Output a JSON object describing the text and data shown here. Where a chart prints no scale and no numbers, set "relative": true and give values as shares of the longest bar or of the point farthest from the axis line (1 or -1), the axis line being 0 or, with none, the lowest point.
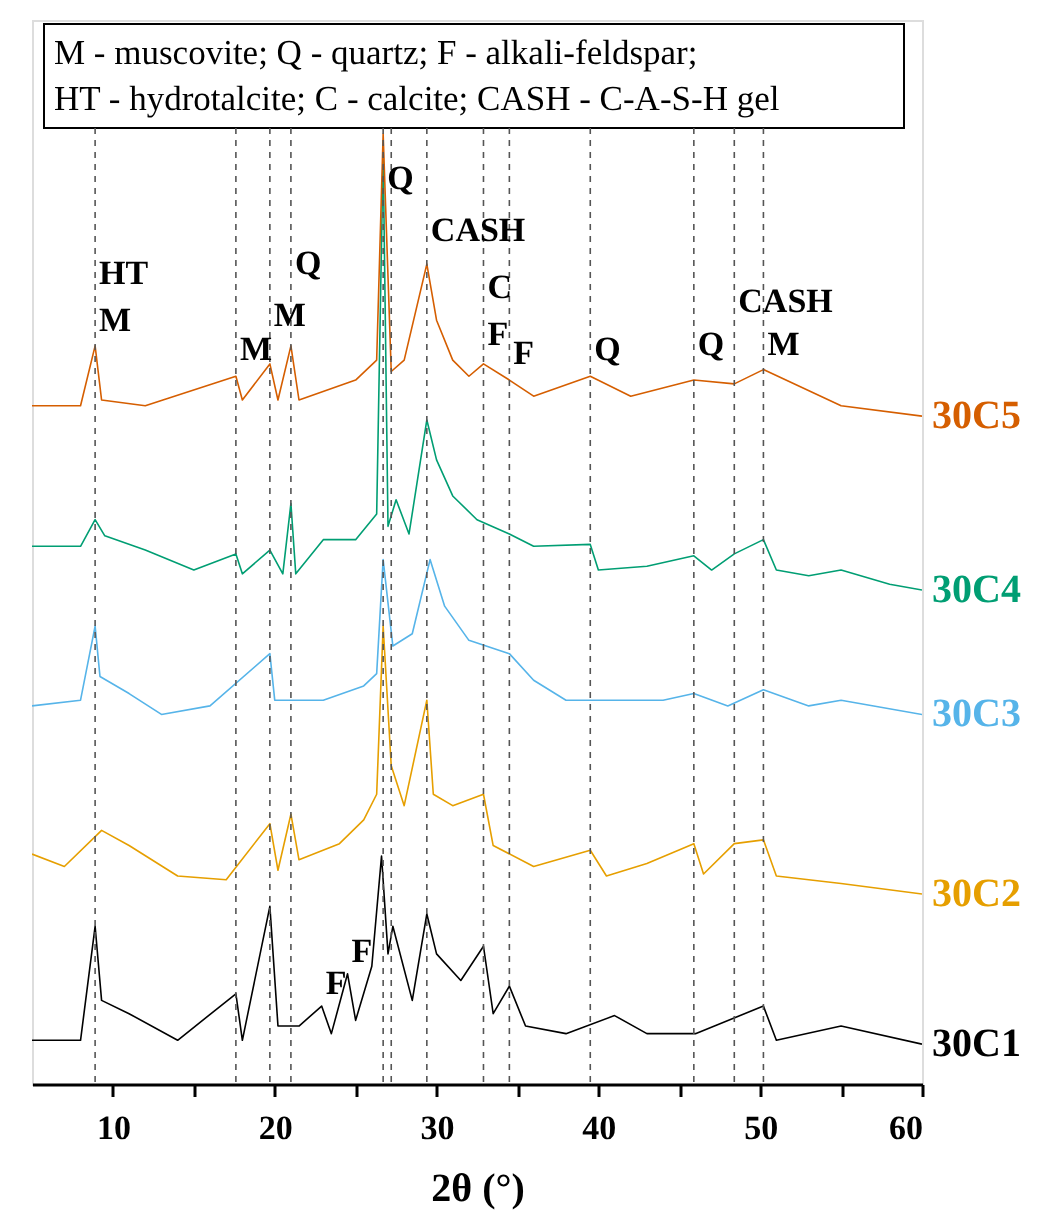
{
  "chart_data": {
    "type": "line",
    "relative": true,
    "xlabel": "2θ (°)",
    "xlim": [
      5,
      60
    ],
    "xticks": [
      10,
      {
        "value": 15,
        "label": null
      },
      20,
      {
        "value": 25,
        "label": null
      },
      30,
      {
        "value": 35,
        "label": null
      },
      40,
      {
        "value": 45,
        "label": null
      },
      50,
      {
        "value": 55,
        "label": null
      },
      60
    ],
    "line_style": "solid",
    "series": [
      {
        "name": "30C1",
        "color": "#000000",
        "x": [
          5,
          8,
          8.9,
          9.3,
          11,
          14,
          17.6,
          18,
          19.7,
          20.2,
          21.5,
          22.9,
          23.5,
          24.5,
          25,
          26,
          26.6,
          27,
          27.3,
          28.5,
          29.4,
          30,
          31.5,
          32.9,
          33.5,
          34.5,
          35.5,
          38,
          41,
          43,
          46,
          50.2,
          51,
          55,
          60
        ],
        "values": [
          0.046,
          0.046,
          0.166,
          0.088,
          0.074,
          0.046,
          0.095,
          0.046,
          0.187,
          0.061,
          0.061,
          0.082,
          0.053,
          0.116,
          0.067,
          0.124,
          0.24,
          0.137,
          0.166,
          0.088,
          0.179,
          0.137,
          0.109,
          0.145,
          0.074,
          0.103,
          0.061,
          0.053,
          0.072,
          0.053,
          0.053,
          0.082,
          0.046,
          0.061,
          0.042
        ]
      },
      {
        "name": "30C2",
        "color": "#e69f00",
        "x": [
          5,
          7,
          9.3,
          11,
          14,
          17,
          19.7,
          20.2,
          21,
          21.5,
          24,
          25.5,
          26.3,
          26.7,
          27.2,
          28,
          29.4,
          29.8,
          31,
          32.9,
          33.5,
          36,
          39.5,
          40.5,
          43,
          45.9,
          46.5,
          48.4,
          50.2,
          51,
          55,
          60
        ],
        "values": [
          0.242,
          0.229,
          0.267,
          0.251,
          0.219,
          0.215,
          0.274,
          0.225,
          0.284,
          0.236,
          0.253,
          0.278,
          0.305,
          0.482,
          0.335,
          0.293,
          0.404,
          0.305,
          0.293,
          0.305,
          0.251,
          0.229,
          0.246,
          0.219,
          0.232,
          0.253,
          0.221,
          0.253,
          0.257,
          0.219,
          0.211,
          0.2
        ]
      },
      {
        "name": "30C3",
        "color": "#56b4e9",
        "x": [
          5,
          8,
          8.9,
          9.2,
          11,
          13,
          16,
          19.7,
          20,
          23,
          25.5,
          26.3,
          26.7,
          27.3,
          28.5,
          29.6,
          30.5,
          32,
          34.5,
          36,
          38,
          40,
          44,
          45.9,
          48,
          50.2,
          53,
          55,
          60
        ],
        "values": [
          0.398,
          0.404,
          0.482,
          0.429,
          0.411,
          0.389,
          0.398,
          0.453,
          0.404,
          0.404,
          0.419,
          0.432,
          0.552,
          0.461,
          0.474,
          0.552,
          0.503,
          0.467,
          0.453,
          0.425,
          0.404,
          0.404,
          0.404,
          0.411,
          0.398,
          0.415,
          0.398,
          0.404,
          0.389
        ]
      },
      {
        "name": "30C4",
        "color": "#009e73",
        "x": [
          5,
          8,
          8.9,
          9.5,
          12,
          15,
          17.6,
          18,
          19.7,
          20.5,
          21,
          21.3,
          23,
          25,
          26.3,
          26.7,
          27,
          27.5,
          28.3,
          29.4,
          30,
          31,
          32.5,
          34.5,
          36,
          39.5,
          40,
          43,
          45.9,
          47,
          48.4,
          50.2,
          51,
          53,
          55,
          58,
          60
        ],
        "values": [
          0.566,
          0.566,
          0.594,
          0.577,
          0.562,
          0.541,
          0.558,
          0.537,
          0.562,
          0.537,
          0.611,
          0.537,
          0.573,
          0.573,
          0.6,
          0.981,
          0.587,
          0.615,
          0.579,
          0.699,
          0.657,
          0.619,
          0.594,
          0.579,
          0.566,
          0.568,
          0.541,
          0.545,
          0.556,
          0.541,
          0.558,
          0.573,
          0.541,
          0.535,
          0.541,
          0.526,
          0.52
        ]
      },
      {
        "name": "30C5",
        "color": "#d55e00",
        "x": [
          5,
          8,
          8.9,
          9.3,
          12,
          17.6,
          18,
          19.7,
          20.2,
          21,
          21.5,
          25,
          26.3,
          26.7,
          27.2,
          28,
          29.4,
          30,
          31,
          32,
          32.9,
          34.5,
          36,
          39.5,
          42,
          45.9,
          48.4,
          50.2,
          55,
          60
        ],
        "values": [
          0.714,
          0.714,
          0.777,
          0.72,
          0.714,
          0.745,
          0.72,
          0.758,
          0.72,
          0.777,
          0.72,
          0.741,
          0.762,
          1.0,
          0.75,
          0.762,
          0.863,
          0.804,
          0.762,
          0.745,
          0.758,
          0.741,
          0.724,
          0.745,
          0.724,
          0.741,
          0.737,
          0.752,
          0.714,
          0.703
        ]
      }
    ],
    "ref_lines": [
      {
        "axis": "x",
        "value": 8.9,
        "color": "#555555",
        "line_style": "dashed"
      },
      {
        "axis": "x",
        "value": 17.6,
        "color": "#555555",
        "line_style": "dashed"
      },
      {
        "axis": "x",
        "value": 19.7,
        "color": "#555555",
        "line_style": "dashed"
      },
      {
        "axis": "x",
        "value": 21.0,
        "color": "#555555",
        "line_style": "dashed"
      },
      {
        "axis": "x",
        "value": 26.7,
        "color": "#555555",
        "line_style": "dashed"
      },
      {
        "axis": "x",
        "value": 27.2,
        "color": "#555555",
        "line_style": "dashed"
      },
      {
        "axis": "x",
        "value": 29.4,
        "color": "#555555",
        "line_style": "dashed"
      },
      {
        "axis": "x",
        "value": 32.9,
        "color": "#555555",
        "line_style": "dashed"
      },
      {
        "axis": "x",
        "value": 34.5,
        "color": "#555555",
        "line_style": "dashed"
      },
      {
        "axis": "x",
        "value": 39.5,
        "color": "#555555",
        "line_style": "dashed"
      },
      {
        "axis": "x",
        "value": 45.9,
        "color": "#555555",
        "line_style": "dashed"
      },
      {
        "axis": "x",
        "value": 48.4,
        "color": "#555555",
        "line_style": "dashed"
      },
      {
        "axis": "x",
        "value": 50.2,
        "color": "#555555",
        "line_style": "dashed"
      }
    ],
    "annotations": [
      "M - muscovite; Q - quartz; F - alkali-feldspar;",
      "HT - hydrotalcite; C - calcite; CASH - C-A-S-H gel",
      {
        "text": "HT",
        "x": 8.9,
        "y": 0.83
      },
      {
        "text": "M",
        "x": 8.9,
        "y": 0.78
      },
      {
        "text": "M",
        "x": 17.6,
        "y": 0.75
      },
      {
        "text": "M",
        "x": 19.7,
        "y": 0.785
      },
      {
        "text": "Q",
        "x": 21.0,
        "y": 0.84
      },
      {
        "text": "Q",
        "x": 26.7,
        "y": 0.93
      },
      {
        "text": "CASH",
        "x": 29.4,
        "y": 0.875
      },
      {
        "text": "C",
        "x": 32.9,
        "y": 0.815
      },
      {
        "text": "F",
        "x": 32.9,
        "y": 0.765
      },
      {
        "text": "F",
        "x": 34.5,
        "y": 0.745
      },
      {
        "text": "Q",
        "x": 39.5,
        "y": 0.75
      },
      {
        "text": "Q",
        "x": 45.9,
        "y": 0.755
      },
      {
        "text": "CASH",
        "x": 48.4,
        "y": 0.8
      },
      {
        "text": "M",
        "x": 50.2,
        "y": 0.755
      },
      {
        "text": "F",
        "x": 22.9,
        "y": 0.082
      },
      {
        "text": "F",
        "x": 24.5,
        "y": 0.116
      }
    ]
  }
}
